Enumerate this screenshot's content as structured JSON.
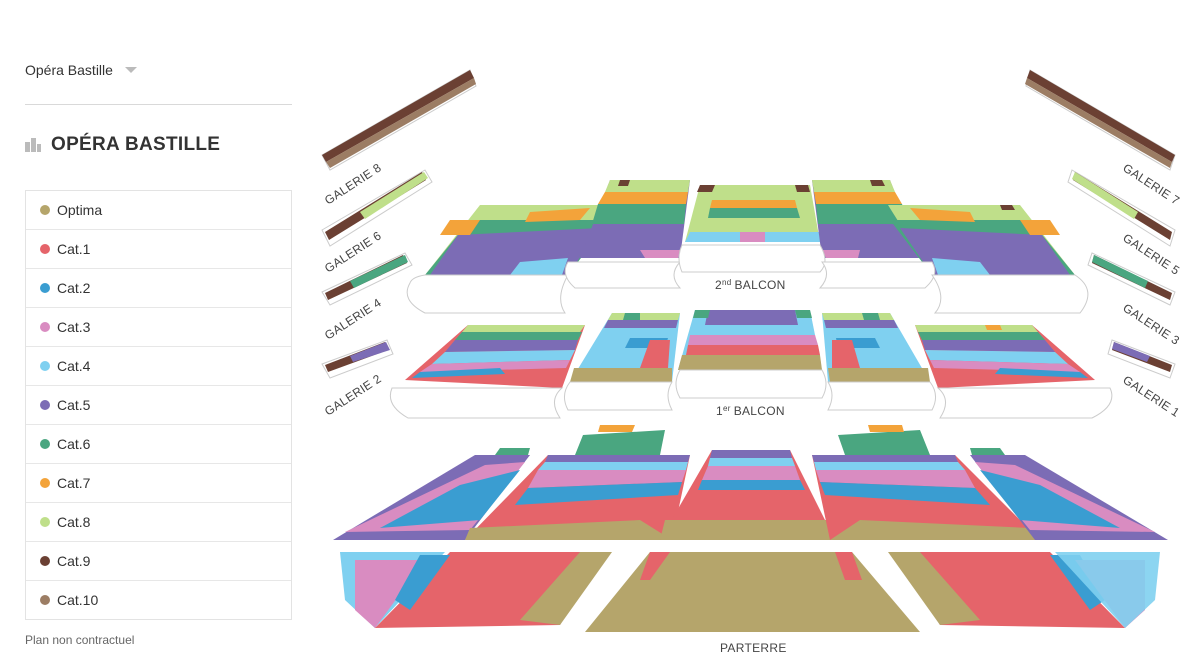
{
  "venue_selector": {
    "value": "Opéra Bastille"
  },
  "venue_title": "OPÉRA BASTILLE",
  "legend": [
    {
      "label": "Optima",
      "color": "#b5a56b"
    },
    {
      "label": "Cat.1",
      "color": "#e5646a"
    },
    {
      "label": "Cat.2",
      "color": "#3a9dd1"
    },
    {
      "label": "Cat.3",
      "color": "#d98cc1"
    },
    {
      "label": "Cat.4",
      "color": "#7fd0f0"
    },
    {
      "label": "Cat.5",
      "color": "#7c6cb5"
    },
    {
      "label": "Cat.6",
      "color": "#4aa680"
    },
    {
      "label": "Cat.7",
      "color": "#f3a33a"
    },
    {
      "label": "Cat.8",
      "color": "#bfdf8a"
    },
    {
      "label": "Cat.9",
      "color": "#6b4033"
    },
    {
      "label": "Cat.10",
      "color": "#9c7d64"
    }
  ],
  "disclaimer": "Plan non contractuel",
  "map": {
    "galerie_8": "GALERIE 8",
    "galerie_7": "GALERIE 7",
    "galerie_6": "GALERIE 6",
    "galerie_5": "GALERIE 5",
    "galerie_4": "GALERIE 4",
    "galerie_3": "GALERIE 3",
    "galerie_2": "GALERIE 2",
    "galerie_1": "GALERIE 1",
    "balcon_2_num": "2",
    "balcon_2_sup": "nd",
    "balcon_2_word": "BALCON",
    "balcon_1_num": "1",
    "balcon_1_sup": "er",
    "balcon_1_word": "BALCON",
    "parterre": "PARTERRE"
  }
}
